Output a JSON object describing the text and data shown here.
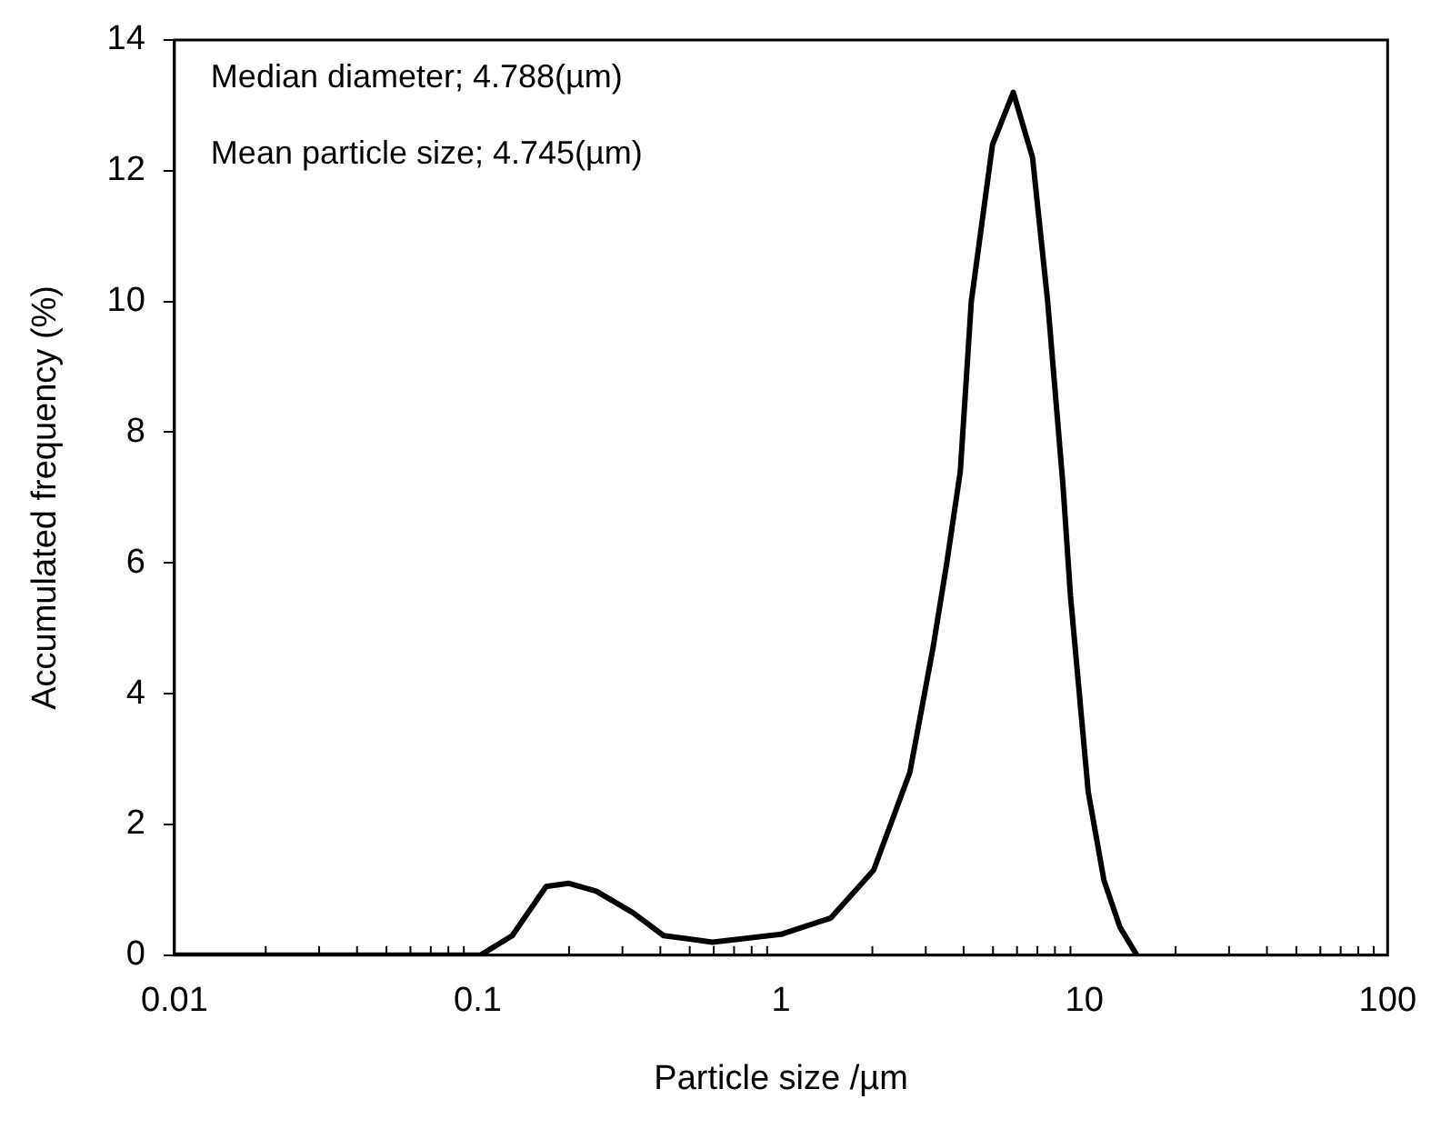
{
  "chart_data": {
    "type": "line",
    "xlabel": "Particle size /µm",
    "ylabel": "Accumulated frequency (%)",
    "annotations": [
      "Median diameter; 4.788(µm)",
      "Mean particle size; 4.745(µm)"
    ],
    "x": [
      0.01,
      0.102,
      0.13,
      0.168,
      0.199,
      0.246,
      0.325,
      0.41,
      0.594,
      1.0,
      1.46,
      2.02,
      2.66,
      3.17,
      3.52,
      3.9,
      4.24,
      4.98,
      5.83,
      6.75,
      7.57,
      8.5,
      9.0,
      10.3,
      11.6,
      13.1,
      14.9
    ],
    "series": [
      {
        "color": "#000000",
        "values": [
          0,
          0,
          0.3,
          1.05,
          1.1,
          0.98,
          0.65,
          0.3,
          0.2,
          0.32,
          0.57,
          1.3,
          2.8,
          4.7,
          6.0,
          7.4,
          10.0,
          12.4,
          13.2,
          12.2,
          10.0,
          7.2,
          5.5,
          2.5,
          1.15,
          0.43,
          0
        ]
      }
    ],
    "log": "x",
    "xlim": [
      0.01,
      100
    ],
    "xticks": [
      0.01,
      0.1,
      1,
      10,
      100
    ],
    "ylim": [
      0,
      14
    ],
    "yticks": [
      0,
      2,
      4,
      6,
      8,
      10,
      12,
      14
    ],
    "marker": "none",
    "line_style": "solid"
  }
}
